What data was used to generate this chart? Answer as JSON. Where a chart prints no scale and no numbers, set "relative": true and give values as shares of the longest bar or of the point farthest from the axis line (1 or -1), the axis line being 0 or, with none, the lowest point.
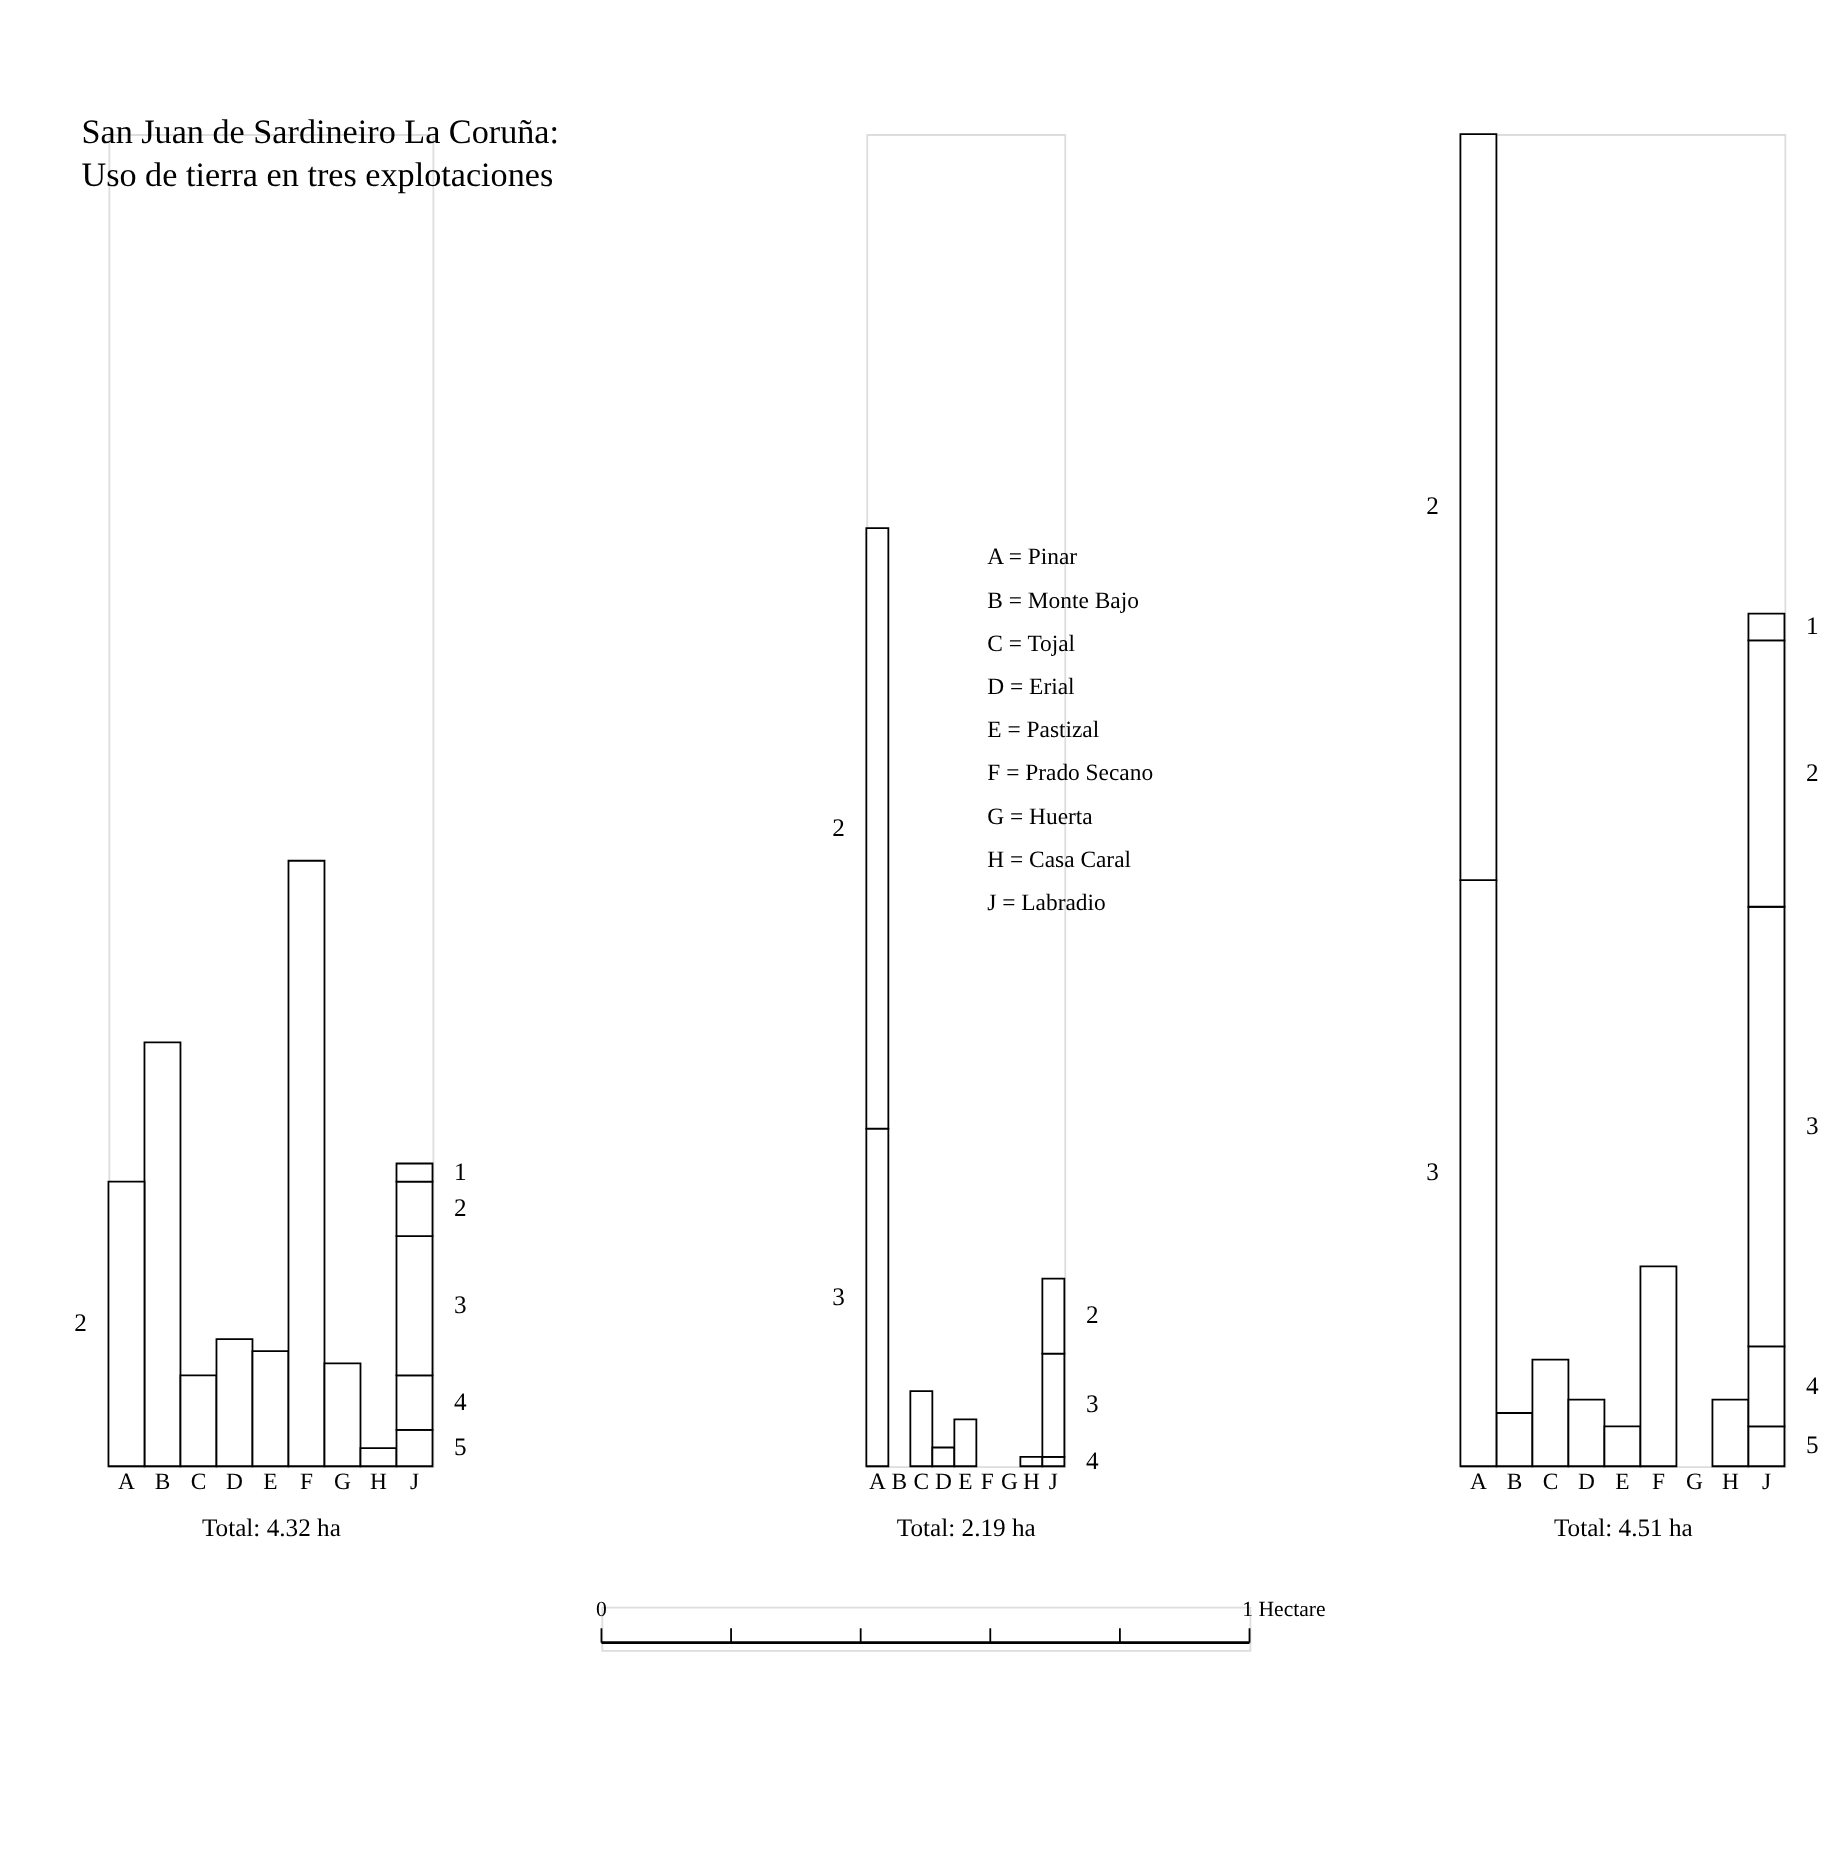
{
  "chart_data": [
    {
      "type": "bar",
      "relative": true,
      "stacked": true,
      "title": "San Juan de Sardineiro La Coruña: Uso de tierra en tres explotaciones",
      "xlabel": "Total: 4.32 ha",
      "categories": [
        "A",
        "B",
        "C",
        "D",
        "E",
        "F",
        "G",
        "H",
        "J"
      ],
      "series": [
        {
          "color": "#ffffff",
          "values": [
            null,
            0.7,
            0.15,
            0.21,
            0.19,
            1,
            0.17,
            0.03,
            null
          ]
        },
        {
          "name": "5",
          "color": "#ffffff",
          "values": [
            null,
            null,
            null,
            null,
            null,
            null,
            null,
            null,
            0.06
          ]
        },
        {
          "name": "4",
          "color": "#ffffff",
          "values": [
            null,
            null,
            null,
            null,
            null,
            null,
            null,
            null,
            0.09
          ]
        },
        {
          "name": "3",
          "color": "#ffffff",
          "values": [
            null,
            null,
            null,
            null,
            null,
            null,
            null,
            null,
            0.23
          ]
        },
        {
          "name": "2",
          "color": "#ffffff",
          "values": [
            0.47,
            null,
            null,
            null,
            null,
            null,
            null,
            null,
            0.09
          ]
        },
        {
          "name": "1",
          "color": "#ffffff",
          "values": [
            null,
            null,
            null,
            null,
            null,
            null,
            null,
            null,
            0.03
          ]
        }
      ]
    },
    {
      "type": "bar",
      "relative": true,
      "stacked": true,
      "xlabel": "Total: 2.19 ha",
      "annotations": [
        "A = Pinar",
        "B = Monte Bajo",
        "C = Tojal",
        "D = Erial",
        "E = Pastizal",
        "F = Prado Secano",
        "G = Huerta",
        "H = Casa Caral",
        "J = Labradio"
      ],
      "categories": [
        "A",
        "B",
        "C",
        "D",
        "E",
        "F",
        "G",
        "H",
        "J"
      ],
      "series": [
        {
          "color": "#ffffff",
          "values": [
            null,
            null,
            0.08,
            0.02,
            0.05,
            null,
            null,
            0.01,
            null
          ]
        },
        {
          "name": "4",
          "color": "#ffffff",
          "values": [
            null,
            null,
            null,
            null,
            null,
            null,
            null,
            null,
            0.01
          ]
        },
        {
          "name": "3",
          "color": "#ffffff",
          "values": [
            0.36,
            null,
            null,
            null,
            null,
            null,
            null,
            null,
            0.11
          ]
        },
        {
          "name": "2",
          "color": "#ffffff",
          "values": [
            0.64,
            null,
            null,
            null,
            null,
            null,
            null,
            null,
            0.08
          ]
        }
      ]
    },
    {
      "type": "bar",
      "relative": true,
      "stacked": true,
      "xlabel": "Total: 4.51 ha",
      "categories": [
        "A",
        "B",
        "C",
        "D",
        "E",
        "F",
        "G",
        "H",
        "J"
      ],
      "series": [
        {
          "color": "#ffffff",
          "values": [
            null,
            0.04,
            0.08,
            0.05,
            0.03,
            0.15,
            null,
            0.05,
            null
          ]
        },
        {
          "name": "5",
          "color": "#ffffff",
          "values": [
            null,
            null,
            null,
            null,
            null,
            null,
            null,
            null,
            0.03
          ]
        },
        {
          "name": "4",
          "color": "#ffffff",
          "values": [
            null,
            null,
            null,
            null,
            null,
            null,
            null,
            null,
            0.06
          ]
        },
        {
          "name": "3",
          "color": "#ffffff",
          "values": [
            0.44,
            null,
            null,
            null,
            null,
            null,
            null,
            null,
            0.33
          ]
        },
        {
          "name": "2",
          "color": "#ffffff",
          "values": [
            0.56,
            null,
            null,
            null,
            null,
            null,
            null,
            null,
            0.2
          ]
        },
        {
          "name": "1",
          "color": "#ffffff",
          "values": [
            null,
            null,
            null,
            null,
            null,
            null,
            null,
            null,
            0.02
          ]
        }
      ]
    },
    {
      "type": "other",
      "annotations": [
        "0",
        "1 Hectare"
      ]
    }
  ]
}
